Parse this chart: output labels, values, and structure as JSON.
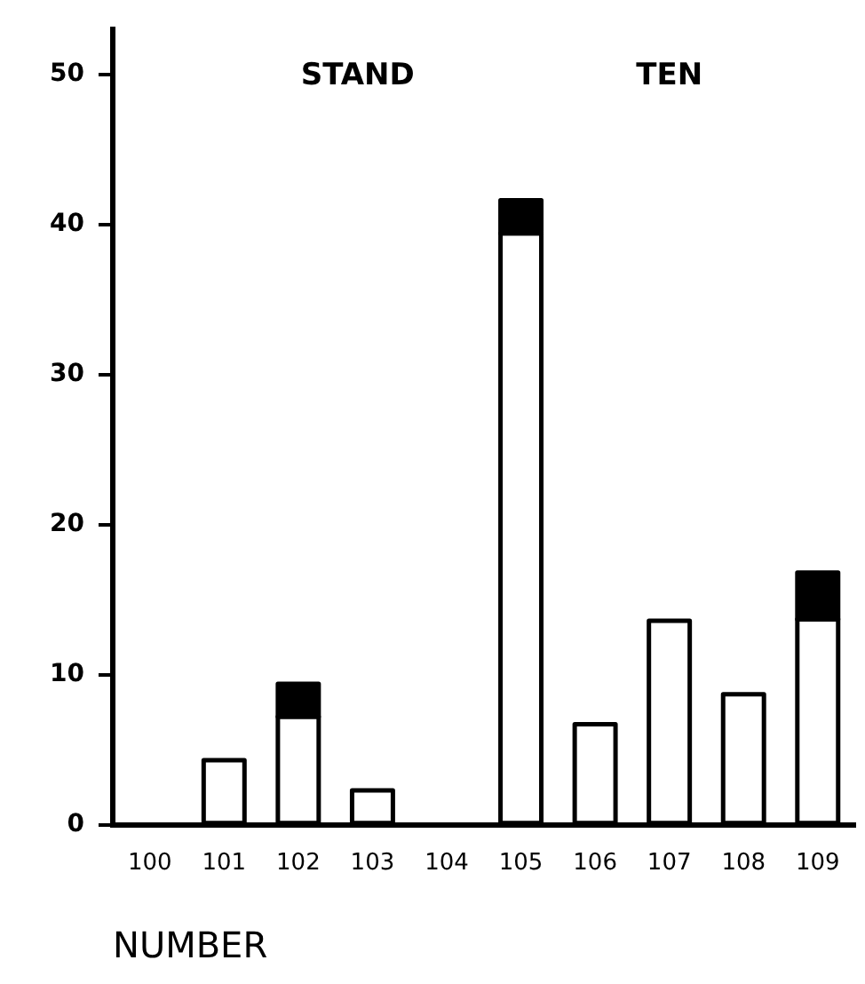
{
  "chart_data": {
    "type": "bar",
    "stacked": true,
    "xlabel": "NUMBER",
    "annotations": [
      "STAND",
      "TEN"
    ],
    "categories": [
      "100",
      "101",
      "102",
      "103",
      "104",
      "105",
      "106",
      "107",
      "108",
      "109"
    ],
    "series": [
      {
        "color": "#ffffff",
        "values": [
          0,
          4.3,
          7.2,
          2.3,
          0,
          39.4,
          6.7,
          13.6,
          8.7,
          13.7
        ]
      },
      {
        "color": "#000000",
        "values": [
          0,
          0,
          2.2,
          0,
          0,
          2.2,
          0,
          0,
          0,
          3.1
        ]
      }
    ],
    "ylim": [
      0,
      53
    ],
    "yticks": [
      0,
      10,
      20,
      30,
      40,
      50
    ],
    "grid": false,
    "legend": false
  }
}
